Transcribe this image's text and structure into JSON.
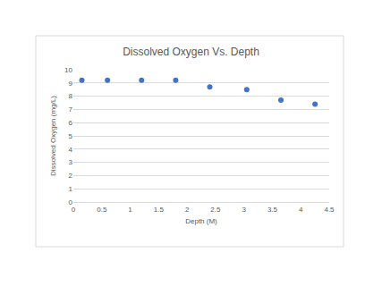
{
  "chart_data": {
    "type": "scatter",
    "title": "Dissolved Oxygen Vs. Depth",
    "x_label": "Depth (M)",
    "y_label": "Dissolved Oxygen (mg/L)",
    "x": [
      0.15,
      0.6,
      1.2,
      1.8,
      2.4,
      3.05,
      3.65,
      4.25
    ],
    "values": [
      9.2,
      9.2,
      9.2,
      9.2,
      8.7,
      8.5,
      7.7,
      7.4
    ],
    "color": "#4472c4",
    "xlim": [
      0,
      4.5
    ],
    "xticks": [
      0,
      0.5,
      1,
      1.5,
      2,
      2.5,
      3,
      3.5,
      4,
      4.5
    ],
    "ylim": [
      0,
      10
    ],
    "yticks": [
      0,
      1,
      2,
      3,
      4,
      5,
      6,
      7,
      8,
      9,
      10
    ],
    "grid": true,
    "marker": "circle"
  }
}
